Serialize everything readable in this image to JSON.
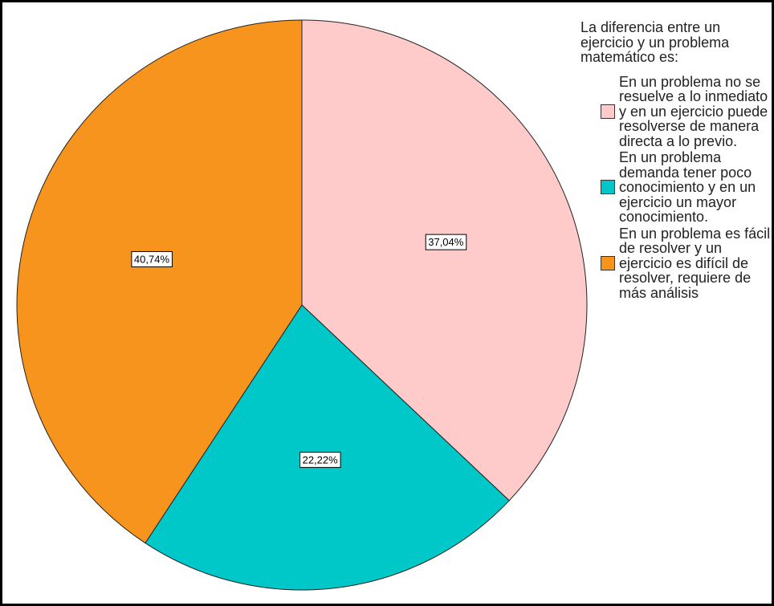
{
  "chart_data": {
    "type": "pie",
    "legend_title": "La diferencia entre un ejercicio y un problema matemático es:",
    "series": [
      {
        "name": "En un problema no se resuelve a lo inmediato y en un ejercicio puede resolverse de manera directa a lo previo.",
        "color": "#ffcaca",
        "values": [
          37.04
        ],
        "value_labels": [
          "37,04%"
        ]
      },
      {
        "name": "En un problema demanda tener poco conocimiento y en un ejercicio un mayor conocimiento.",
        "color": "#00c8c8",
        "values": [
          22.22
        ],
        "value_labels": [
          "22,22%"
        ]
      },
      {
        "name": "En un problema es fácil de resolver y un ejercicio es difícil de resolver, requiere de más análisis",
        "color": "#f7941d",
        "values": [
          40.74
        ],
        "value_labels": [
          "40,74%"
        ]
      }
    ],
    "legend": "right"
  }
}
